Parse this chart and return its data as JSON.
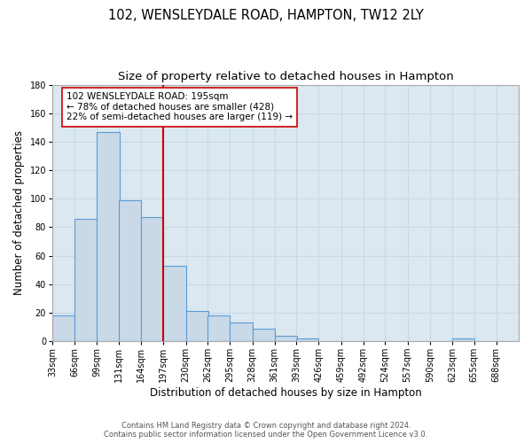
{
  "title": "102, WENSLEYDALE ROAD, HAMPTON, TW12 2LY",
  "subtitle": "Size of property relative to detached houses in Hampton",
  "xlabel": "Distribution of detached houses by size in Hampton",
  "ylabel": "Number of detached properties",
  "bin_labels": [
    "33sqm",
    "66sqm",
    "99sqm",
    "131sqm",
    "164sqm",
    "197sqm",
    "230sqm",
    "262sqm",
    "295sqm",
    "328sqm",
    "361sqm",
    "393sqm",
    "426sqm",
    "459sqm",
    "492sqm",
    "524sqm",
    "557sqm",
    "590sqm",
    "623sqm",
    "655sqm",
    "688sqm"
  ],
  "bin_edges": [
    33,
    66,
    99,
    131,
    164,
    197,
    230,
    262,
    295,
    328,
    361,
    393,
    426,
    459,
    492,
    524,
    557,
    590,
    623,
    655,
    688
  ],
  "counts": [
    18,
    86,
    147,
    99,
    87,
    53,
    21,
    18,
    13,
    9,
    4,
    2,
    0,
    0,
    0,
    0,
    0,
    0,
    2,
    0,
    0
  ],
  "bar_facecolor": "#c9d9e8",
  "bar_edgecolor": "#5b9bd5",
  "bar_linewidth": 0.8,
  "vline_x": 197,
  "vline_color": "#cc0000",
  "vline_linewidth": 1.5,
  "annotation_line1": "102 WENSLEYDALE ROAD: 195sqm",
  "annotation_line2": "← 78% of detached houses are smaller (428)",
  "annotation_line3": "22% of semi-detached houses are larger (119) →",
  "annotation_box_edgecolor": "#cc0000",
  "annotation_box_facecolor": "white",
  "ylim": [
    0,
    180
  ],
  "yticks": [
    0,
    20,
    40,
    60,
    80,
    100,
    120,
    140,
    160,
    180
  ],
  "grid_color": "#c8d8e8",
  "background_color": "#dce8f0",
  "footer_line1": "Contains HM Land Registry data © Crown copyright and database right 2024.",
  "footer_line2": "Contains public sector information licensed under the Open Government Licence v3.0.",
  "title_fontsize": 10.5,
  "subtitle_fontsize": 9.5,
  "xlabel_fontsize": 8.5,
  "ylabel_fontsize": 8.5,
  "tick_fontsize": 7,
  "annotation_fontsize": 7.5,
  "footer_fontsize": 6.0
}
